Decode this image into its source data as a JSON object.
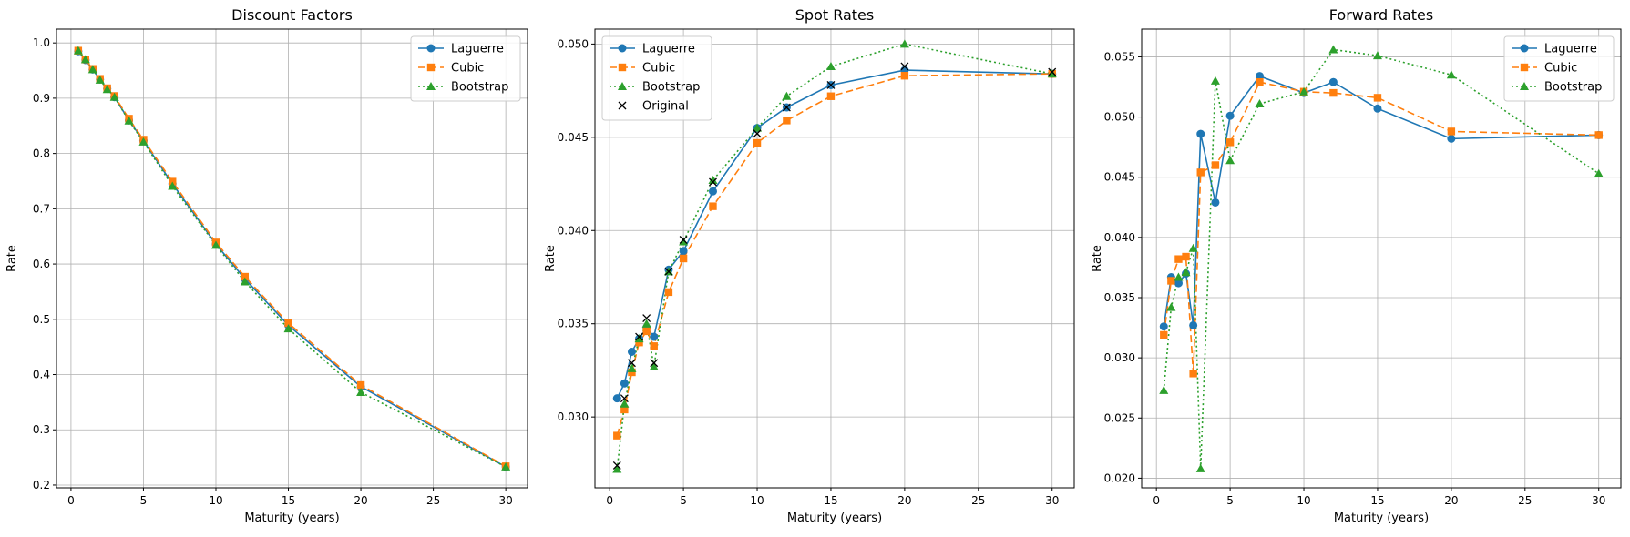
{
  "colors": {
    "laguerre": "#1f77b4",
    "cubic": "#ff7f0e",
    "bootstrap": "#2ca02c",
    "original": "#000000",
    "grid": "#b0b0b0",
    "axis": "#000000"
  },
  "chart_data": [
    {
      "type": "line",
      "title": "Discount Factors",
      "xlabel": "Maturity (years)",
      "ylabel": "Rate",
      "xlim": [
        -1,
        31.5
      ],
      "ylim": [
        0.195,
        1.025
      ],
      "xticks": [
        0,
        5,
        10,
        15,
        20,
        25,
        30
      ],
      "xtick_labels": [
        "0",
        "5",
        "10",
        "15",
        "20",
        "25",
        "30"
      ],
      "yticks": [
        0.2,
        0.3,
        0.4,
        0.5,
        0.6,
        0.7,
        0.8,
        0.9,
        1.0
      ],
      "ytick_labels": [
        "0.2",
        "0.3",
        "0.4",
        "0.5",
        "0.6",
        "0.7",
        "0.8",
        "0.9",
        "1.0"
      ],
      "grid": true,
      "legend_position": "top-right",
      "series": [
        {
          "name": "Laguerre",
          "style": "solid",
          "marker": "circle",
          "color_key": "laguerre",
          "x": [
            0.5,
            1,
            1.5,
            2,
            2.5,
            3,
            4,
            5,
            7,
            10,
            12,
            15,
            20,
            30
          ],
          "y": [
            0.985,
            0.969,
            0.952,
            0.934,
            0.917,
            0.902,
            0.86,
            0.823,
            0.745,
            0.636,
            0.573,
            0.489,
            0.378,
            0.233
          ]
        },
        {
          "name": "Cubic",
          "style": "dashed",
          "marker": "square",
          "color_key": "cubic",
          "x": [
            0.5,
            1,
            1.5,
            2,
            2.5,
            3,
            4,
            5,
            7,
            10,
            12,
            15,
            20,
            30
          ],
          "y": [
            0.986,
            0.97,
            0.953,
            0.935,
            0.918,
            0.904,
            0.863,
            0.825,
            0.749,
            0.639,
            0.577,
            0.493,
            0.381,
            0.234
          ]
        },
        {
          "name": "Bootstrap",
          "style": "dotted",
          "marker": "triangle",
          "color_key": "bootstrap",
          "x": [
            0.5,
            1,
            1.5,
            2,
            2.5,
            3,
            4,
            5,
            7,
            10,
            12,
            15,
            20,
            30
          ],
          "y": [
            0.986,
            0.97,
            0.952,
            0.933,
            0.916,
            0.902,
            0.859,
            0.821,
            0.741,
            0.634,
            0.568,
            0.483,
            0.368,
            0.233
          ]
        }
      ]
    },
    {
      "type": "line",
      "title": "Spot Rates",
      "xlabel": "Maturity (years)",
      "ylabel": "Rate",
      "xlim": [
        -1,
        31.5
      ],
      "ylim": [
        0.0262,
        0.0508
      ],
      "xticks": [
        0,
        5,
        10,
        15,
        20,
        25,
        30
      ],
      "xtick_labels": [
        "0",
        "5",
        "10",
        "15",
        "20",
        "25",
        "30"
      ],
      "yticks": [
        0.03,
        0.035,
        0.04,
        0.045,
        0.05
      ],
      "ytick_labels": [
        "0.030",
        "0.035",
        "0.040",
        "0.045",
        "0.050"
      ],
      "grid": true,
      "legend_position": "top-left",
      "series": [
        {
          "name": "Laguerre",
          "style": "solid",
          "marker": "circle",
          "color_key": "laguerre",
          "x": [
            0.5,
            1,
            1.5,
            2,
            2.5,
            3,
            4,
            5,
            7,
            10,
            12,
            15,
            20,
            30
          ],
          "y": [
            0.031,
            0.0318,
            0.0335,
            0.0342,
            0.0348,
            0.0343,
            0.0379,
            0.0389,
            0.0421,
            0.0455,
            0.0466,
            0.0478,
            0.0486,
            0.0484
          ]
        },
        {
          "name": "Cubic",
          "style": "dashed",
          "marker": "square",
          "color_key": "cubic",
          "x": [
            0.5,
            1,
            1.5,
            2,
            2.5,
            3,
            4,
            5,
            7,
            10,
            12,
            15,
            20,
            30
          ],
          "y": [
            0.029,
            0.0304,
            0.0324,
            0.034,
            0.0346,
            0.0338,
            0.0367,
            0.0385,
            0.0413,
            0.0447,
            0.0459,
            0.0472,
            0.0483,
            0.0484
          ]
        },
        {
          "name": "Bootstrap",
          "style": "dotted",
          "marker": "triangle",
          "color_key": "bootstrap",
          "x": [
            0.5,
            1,
            1.5,
            2,
            2.5,
            3,
            4,
            5,
            7,
            10,
            12,
            15,
            20,
            30
          ],
          "y": [
            0.0272,
            0.0307,
            0.0326,
            0.0342,
            0.035,
            0.0327,
            0.0378,
            0.0394,
            0.0427,
            0.0455,
            0.0472,
            0.0488,
            0.05,
            0.0484
          ]
        },
        {
          "name": "Original",
          "style": "none",
          "marker": "x",
          "color_key": "original",
          "x": [
            0.5,
            1,
            1.5,
            2,
            2.5,
            3,
            4,
            5,
            7,
            10,
            12,
            15,
            20,
            30
          ],
          "y": [
            0.0274,
            0.031,
            0.0329,
            0.0343,
            0.0353,
            0.0329,
            0.0378,
            0.0395,
            0.0426,
            0.0452,
            0.0466,
            0.0478,
            0.0488,
            0.0485
          ]
        }
      ]
    },
    {
      "type": "line",
      "title": "Forward Rates",
      "xlabel": "Maturity (years)",
      "ylabel": "Rate",
      "xlim": [
        -1,
        31.5
      ],
      "ylim": [
        0.0192,
        0.0573
      ],
      "xticks": [
        0,
        5,
        10,
        15,
        20,
        25,
        30
      ],
      "xtick_labels": [
        "0",
        "5",
        "10",
        "15",
        "20",
        "25",
        "30"
      ],
      "yticks": [
        0.02,
        0.025,
        0.03,
        0.035,
        0.04,
        0.045,
        0.05,
        0.055
      ],
      "ytick_labels": [
        "0.020",
        "0.025",
        "0.030",
        "0.035",
        "0.040",
        "0.045",
        "0.050",
        "0.055"
      ],
      "grid": true,
      "legend_position": "top-right",
      "series": [
        {
          "name": "Laguerre",
          "style": "solid",
          "marker": "circle",
          "color_key": "laguerre",
          "x": [
            0.5,
            1,
            1.5,
            2,
            2.5,
            3,
            4,
            5,
            7,
            10,
            12,
            15,
            20,
            30
          ],
          "y": [
            0.0326,
            0.0367,
            0.0362,
            0.037,
            0.0327,
            0.0486,
            0.0429,
            0.0501,
            0.0534,
            0.052,
            0.0529,
            0.0507,
            0.0482,
            0.0485
          ]
        },
        {
          "name": "Cubic",
          "style": "dashed",
          "marker": "square",
          "color_key": "cubic",
          "x": [
            0.5,
            1,
            1.5,
            2,
            2.5,
            3,
            4,
            5,
            7,
            10,
            12,
            15,
            20,
            30
          ],
          "y": [
            0.0319,
            0.0364,
            0.0382,
            0.0384,
            0.0287,
            0.0454,
            0.046,
            0.0479,
            0.0529,
            0.0521,
            0.052,
            0.0516,
            0.0488,
            0.0485
          ]
        },
        {
          "name": "Bootstrap",
          "style": "dotted",
          "marker": "triangle",
          "color_key": "bootstrap",
          "x": [
            0.5,
            1,
            1.5,
            2,
            2.5,
            3,
            4,
            5,
            7,
            10,
            12,
            15,
            20,
            30
          ],
          "y": [
            0.0273,
            0.0342,
            0.0367,
            0.0371,
            0.0391,
            0.0208,
            0.053,
            0.0464,
            0.0511,
            0.0521,
            0.0556,
            0.0551,
            0.0535,
            0.0453
          ]
        }
      ]
    }
  ]
}
